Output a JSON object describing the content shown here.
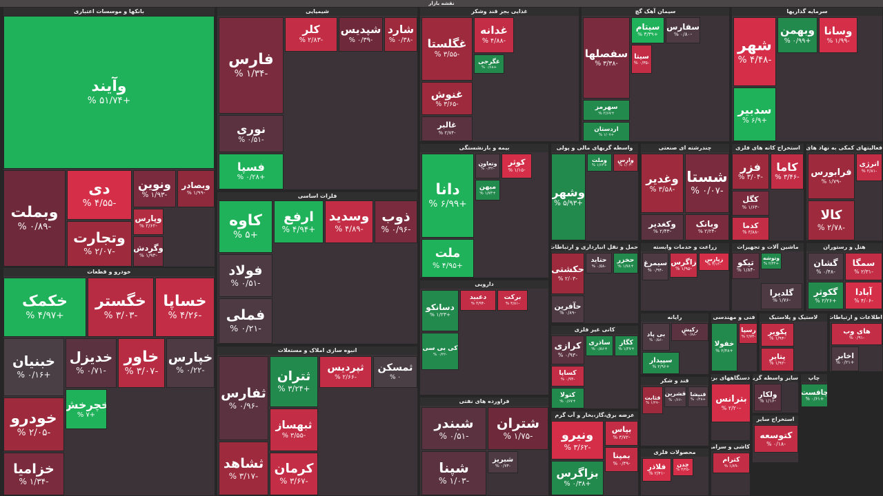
{
  "title": "نقشه بازار",
  "sectors": [
    {
      "name": "بانکها و موسسات اعتباری",
      "tiles": [
        {
          "symbol": "وآیند",
          "change": "+۵۱/۷۴ %",
          "color": "#1fb25a"
        },
        {
          "symbol": "وبملت",
          "change": "-۰/۸۹ %",
          "color": "#6e2a3b"
        },
        {
          "symbol": "دی",
          "change": "-۴/۵۵ %",
          "color": "#d42e48"
        },
        {
          "symbol": "وتجارت",
          "change": "-۲/۰۷ %",
          "color": "#9e2b3d"
        },
        {
          "symbol": "ونوین",
          "change": "-۱/۹۳ %",
          "color": "#7a2c3e"
        },
        {
          "symbol": "وبصادر",
          "change": "-۱/۹۹ %",
          "color": "#8e2a3c"
        },
        {
          "symbol": "وپارس",
          "change": "-۲/۶۲ %",
          "color": "#b22c42"
        },
        {
          "symbol": "وگردش",
          "change": "-۱/۹۳ %",
          "color": "#7a2c3e"
        }
      ]
    },
    {
      "name": "خودرو و قطعات",
      "tiles": [
        {
          "symbol": "خکمک",
          "change": "+۴/۹۷ %",
          "color": "#1fb25a"
        },
        {
          "symbol": "خگستر",
          "change": "-۳/۰۳ %",
          "color": "#b82c43"
        },
        {
          "symbol": "خساپا",
          "change": "-۴/۲۶ %",
          "color": "#c42d46"
        },
        {
          "symbol": "خبنیان",
          "change": "+۰/۱۶ %",
          "color": "#4a3f45"
        },
        {
          "symbol": "خدیزل",
          "change": "-۰/۷۱ %",
          "color": "#5a3240"
        },
        {
          "symbol": "خاور",
          "change": "-۳/۰۷ %",
          "color": "#b82c43"
        },
        {
          "symbol": "خپارس",
          "change": "-۰/۲۲ %",
          "color": "#4e3a43"
        },
        {
          "symbol": "خودرو",
          "change": "-۲/۰۵ %",
          "color": "#9e2b3d"
        },
        {
          "symbol": "خچرخش",
          "change": "+۷ %",
          "color": "#1fb25a"
        },
        {
          "symbol": "خزامیا",
          "change": "-۱/۳۴ %",
          "color": "#7a2c3e"
        }
      ]
    },
    {
      "name": "شیمیایی",
      "tiles": [
        {
          "symbol": "فارس",
          "change": "-۱/۳۴ %",
          "color": "#7a2c3e"
        },
        {
          "symbol": "نوری",
          "change": "-۰/۵۱ %",
          "color": "#5a3240"
        },
        {
          "symbol": "فسپا",
          "change": "+۰/۲۸ %",
          "color": "#1fb25a"
        },
        {
          "symbol": "کلر",
          "change": "-۲/۸۳ %",
          "color": "#c42d46"
        },
        {
          "symbol": "شپدیس",
          "change": "-۰/۳۹ %",
          "color": "#6e2a3b"
        },
        {
          "symbol": "شارد",
          "change": "-۰/۳۸ %",
          "color": "#9e2b3d"
        }
      ]
    },
    {
      "name": "فلزات اساسی",
      "tiles": [
        {
          "symbol": "کاوه",
          "change": "+۵ %",
          "color": "#1fb25a"
        },
        {
          "symbol": "ارفع",
          "change": "+۴/۹۴ %",
          "color": "#1fb25a"
        },
        {
          "symbol": "وسدید",
          "change": "-۴/۸۹ %",
          "color": "#c42d46"
        },
        {
          "symbol": "ذوب",
          "change": "-۰/۹۶ %",
          "color": "#7a2c3e"
        },
        {
          "symbol": "فولاد",
          "change": "-۰/۵۱ %",
          "color": "#4e3a43"
        },
        {
          "symbol": "فملی",
          "change": "-۰/۲۱ %",
          "color": "#4e3a43"
        }
      ]
    },
    {
      "name": "انبوه سازی املاک و مستغلات",
      "tiles": [
        {
          "symbol": "ثفارس",
          "change": "-۰/۹۶ %",
          "color": "#5a3240"
        },
        {
          "symbol": "ثشاهد",
          "change": "-۳/۱۷ %",
          "color": "#9e2b3d"
        },
        {
          "symbol": "ثتران",
          "change": "+۳/۲۴ %",
          "color": "#238a4e"
        },
        {
          "symbol": "ثپردیس",
          "change": "-۲/۶۶ %",
          "color": "#c42d46"
        },
        {
          "symbol": "ثمسکن",
          "change": "۰ %",
          "color": "#4a3f45"
        },
        {
          "symbol": "ثبهساز",
          "change": "-۳/۵۵ %",
          "color": "#c42d46"
        },
        {
          "symbol": "کرمان",
          "change": "-۳/۶۷ %",
          "color": "#c42d46"
        }
      ]
    },
    {
      "name": "غذایی بجز قند وشکر",
      "tiles": [
        {
          "symbol": "غگلستا",
          "change": "-۳/۵۵ %",
          "color": "#9e2b3d"
        },
        {
          "symbol": "غنوش",
          "change": "-۳/۶۵ %",
          "color": "#9e2b3d"
        },
        {
          "symbol": "غالبر",
          "change": "-۲/۷۴ %",
          "color": "#5a3240"
        },
        {
          "symbol": "غدانه",
          "change": "-۴/۸۸ %",
          "color": "#c42d46"
        },
        {
          "symbol": "غگرجی",
          "change": "+۰/۶۸ %",
          "color": "#238a4e"
        }
      ]
    },
    {
      "name": "بیمه و بازنشستگی",
      "tiles": [
        {
          "symbol": "دانا",
          "change": "+۶/۹۹ %",
          "color": "#1fb25a"
        },
        {
          "symbol": "ملت",
          "change": "+۴/۹۵ %",
          "color": "#1fb25a"
        },
        {
          "symbol": "کوثر",
          "change": "-۱/۱۵ %",
          "color": "#d42e48"
        },
        {
          "symbol": "وتعاون",
          "change": "-۰/۳۲ %",
          "color": "#4e3a43"
        },
        {
          "symbol": "میهن",
          "change": "+۱/۷۳ %",
          "color": "#238a4e"
        }
      ]
    },
    {
      "name": "دارویی",
      "tiles": [
        {
          "symbol": "دسانکو",
          "change": "+۱/۲۳ %",
          "color": "#238a4e"
        },
        {
          "symbol": "دعبید",
          "change": "-۳/۹۴ %",
          "color": "#c42d46"
        },
        {
          "symbol": "برکت",
          "change": "-۳/۸۱ %",
          "color": "#c42d46"
        },
        {
          "symbol": "کی بی سی",
          "change": "-۰/۳۲ %",
          "color": "#238a4e"
        }
      ]
    },
    {
      "name": "فراورده های نفتی",
      "tiles": [
        {
          "symbol": "شبندر",
          "change": "-۰/۵۱ %",
          "color": "#5a3240"
        },
        {
          "symbol": "شپنا",
          "change": "-۱/۰۳ %",
          "color": "#5a3240"
        },
        {
          "symbol": "شتران",
          "change": "-۱/۷۵ %",
          "color": "#6e2a3b"
        },
        {
          "symbol": "شبریز",
          "change": "-۰/۷۴ %",
          "color": "#4e3a43"
        }
      ]
    },
    {
      "name": "سیمان آهک گچ",
      "tiles": [
        {
          "symbol": "سفصلها",
          "change": "-۳/۳۸ %",
          "color": "#7a2c3e"
        },
        {
          "symbol": "سهرمز",
          "change": "+۲/۶۷ %",
          "color": "#238a4e"
        },
        {
          "symbol": "اردستان",
          "change": "+۱/۰۷ %",
          "color": "#238a4e"
        },
        {
          "symbol": "سیتام",
          "change": "+۳/۳۹ %",
          "color": "#1fb25a"
        },
        {
          "symbol": "سفارس",
          "change": "-۰/۸۰ %",
          "color": "#4e3a43"
        },
        {
          "symbol": "سیتا",
          "change": "-۰/۳۵ %",
          "color": "#c42d46"
        }
      ]
    },
    {
      "name": "سرمایه گذاریها",
      "tiles": [
        {
          "symbol": "شهر",
          "change": "-۴/۴۸ %",
          "color": "#d42e48"
        },
        {
          "symbol": "سدبیر",
          "change": "+۶/۹ %",
          "color": "#1fb25a"
        },
        {
          "symbol": "وبهمن",
          "change": "+۰/۹۹ %",
          "color": "#238a4e"
        },
        {
          "symbol": "وسانا",
          "change": "-۱/۹۹ %",
          "color": "#d42e48"
        }
      ]
    },
    {
      "name": "واسطه گریهای مالی و پولی",
      "tiles": [
        {
          "symbol": "وشهر",
          "change": "+۵/۹۳ %",
          "color": "#238a4e"
        },
        {
          "symbol": "وملت",
          "change": "+۱/۶۴ %",
          "color": "#238a4e"
        },
        {
          "symbol": "وارس",
          "change": "-۱/۰۳ %",
          "color": "#9e2b3d"
        }
      ]
    },
    {
      "name": "چندرشته ای صنعتی",
      "tiles": [
        {
          "symbol": "وغدیر",
          "change": "-۳/۵۸ %",
          "color": "#9e2b3d"
        },
        {
          "symbol": "شستا",
          "change": "-۰/۰۷ %",
          "color": "#7a2c3e"
        },
        {
          "symbol": "وکغدیر",
          "change": "-۲/۴۳ %",
          "color": "#5a3240"
        },
        {
          "symbol": "وبانک",
          "change": "-۲/۲۴ %",
          "color": "#7a2c3e"
        }
      ]
    },
    {
      "name": "استخراج کانه های فلزی",
      "tiles": [
        {
          "symbol": "فزر",
          "change": "-۳/۰۴ %",
          "color": "#9e2b3d"
        },
        {
          "symbol": "کاما",
          "change": "-۳/۴۶ %",
          "color": "#c42d46"
        },
        {
          "symbol": "کگل",
          "change": "-۱/۶۴ %",
          "color": "#7a2c3e"
        },
        {
          "symbol": "کدما",
          "change": "-۳/۸۸ %",
          "color": "#c42d46"
        }
      ]
    },
    {
      "name": "فعالیتهای کمکی به نهاد های مالی",
      "tiles": [
        {
          "symbol": "فرابورس",
          "change": "-۱/۷۹ %",
          "color": "#9e2b3d"
        },
        {
          "symbol": "انرژی",
          "change": "-۲/۸۱ %",
          "color": "#c42d46"
        },
        {
          "symbol": "کالا",
          "change": "-۲/۷۸ %",
          "color": "#9e2b3d"
        }
      ]
    },
    {
      "name": "حمل و نقل انبارداری و ارتباطات",
      "tiles": [
        {
          "symbol": "حکشتی",
          "change": "-۲/۰۳ %",
          "color": "#9e2b3d"
        },
        {
          "symbol": "حتاید",
          "change": "-۰/۵۸ %",
          "color": "#4e3a43"
        },
        {
          "symbol": "حخزر",
          "change": "+۱/۷۸ %",
          "color": "#238a4e"
        },
        {
          "symbol": "حآفرین",
          "change": "-۰/۸۹ %",
          "color": "#4e3a43"
        }
      ]
    },
    {
      "name": "زراعت و خدمات وابسته",
      "tiles": [
        {
          "symbol": "سیمرغ",
          "change": "-۰/۹۴ %",
          "color": "#4e3a43"
        },
        {
          "symbol": "زاگرس",
          "change": "-۱/۹۵ %",
          "color": "#c42d46"
        },
        {
          "symbol": "زپارس",
          "change": "-۳/۱۴ %",
          "color": "#d42e48"
        }
      ]
    },
    {
      "name": "ماشین آلات و تجهیزات",
      "tiles": [
        {
          "symbol": "تیکو",
          "change": "-۱/۸۴ %",
          "color": "#5a3240"
        },
        {
          "symbol": "وتوشه",
          "change": "+۲/۳۴ %",
          "color": "#238a4e"
        },
        {
          "symbol": "گلدیرا",
          "change": "-۱/۷۶ %",
          "color": "#4e3a43"
        }
      ]
    },
    {
      "name": "هتل و رستوران",
      "tiles": [
        {
          "symbol": "گشان",
          "change": "-۰/۴۸ %",
          "color": "#4e3a43"
        },
        {
          "symbol": "سمگا",
          "change": "-۲/۳۱ %",
          "color": "#c42d46"
        },
        {
          "symbol": "گکوثر",
          "change": "+۲/۲۶ %",
          "color": "#238a4e"
        },
        {
          "symbol": "آبادا",
          "change": "-۴/۰۶ %",
          "color": "#d42e48"
        }
      ]
    },
    {
      "name": "کانی غیر فلزی",
      "tiles": [
        {
          "symbol": "کرازی",
          "change": "-۰/۹۳ %",
          "color": "#5a3240"
        },
        {
          "symbol": "ساذری",
          "change": "+۰/۸۶ %",
          "color": "#238a4e"
        },
        {
          "symbol": "کگاز",
          "change": "+۱/۲۷ %",
          "color": "#238a4e"
        },
        {
          "symbol": "کساپا",
          "change": "-۰/۹۴ %",
          "color": "#c42d46"
        },
        {
          "symbol": "کتولا",
          "change": "+۰/۶۷ %",
          "color": "#238a4e"
        }
      ]
    },
    {
      "name": "عرضه برق،گاز،بخار و آب گرم",
      "tiles": [
        {
          "symbol": "ونیرو",
          "change": "-۳/۶۲ %",
          "color": "#d42e48"
        },
        {
          "symbol": "بپاس",
          "change": "-۳/۷۲ %",
          "color": "#c42d46"
        },
        {
          "symbol": "بزاگرس",
          "change": "+۰/۳۸ %",
          "color": "#238a4e"
        },
        {
          "symbol": "بمپنا",
          "change": "-۰/۴۹ %",
          "color": "#c42d46"
        }
      ]
    },
    {
      "name": "رایانه",
      "tiles": [
        {
          "symbol": "بی پاد",
          "change": "-۰/۵۶ %",
          "color": "#4e3a43"
        },
        {
          "symbol": "رکیش",
          "change": "-۰/۸۸ %",
          "color": "#5a3240"
        },
        {
          "symbol": "سپیدار",
          "change": "+۲/۹۶ %",
          "color": "#238a4e"
        }
      ]
    },
    {
      "name": "فنی و مهندسی",
      "tiles": [
        {
          "symbol": "خفولا",
          "change": "+۲/۴۸ %",
          "color": "#238a4e"
        },
        {
          "symbol": "رسپا",
          "change": "-۲/۷۳ %",
          "color": "#c42d46"
        }
      ]
    },
    {
      "name": "لاستیک و پلاستیک",
      "tiles": [
        {
          "symbol": "پکویر",
          "change": "-۱/۹۴ %",
          "color": "#c42d46"
        },
        {
          "symbol": "پتایر",
          "change": "-۱/۹۲ %",
          "color": "#c42d46"
        }
      ]
    },
    {
      "name": "اطلاعات و ارتباطات",
      "tiles": [
        {
          "symbol": "های وب",
          "change": "-۰/۹۱ %",
          "color": "#c42d46"
        },
        {
          "symbol": "اخابر",
          "change": "+۰/۲۱ %",
          "color": "#4e3a43"
        }
      ]
    },
    {
      "name": "قند و شکر",
      "tiles": [
        {
          "symbol": "قثابت",
          "change": "-۱/۲۷ %",
          "color": "#9e2b3d"
        },
        {
          "symbol": "قشرین",
          "change": "-۰/۶۶ %",
          "color": "#4e3a43"
        },
        {
          "symbol": "قنیشا",
          "change": "+۰/۲۸ %",
          "color": "#4e3a43"
        }
      ]
    },
    {
      "name": "محصولات فلزی",
      "tiles": [
        {
          "symbol": "چدن",
          "change": "-۳/۴۵ %",
          "color": "#d42e48"
        },
        {
          "symbol": "فلاذر",
          "change": "-۲/۴۱ %",
          "color": "#d42e48"
        }
      ]
    },
    {
      "name": "دستگاههای برقی",
      "tiles": [
        {
          "symbol": "بترانس",
          "change": "-۲/۲۰ %",
          "color": "#d42e48"
        }
      ]
    },
    {
      "name": "سایر واسطه گریهای مالی",
      "tiles": [
        {
          "symbol": "ولکار",
          "change": "-۱/۱۶ %",
          "color": "#5a3240"
        }
      ]
    },
    {
      "name": "چاپ",
      "tiles": [
        {
          "symbol": "چافست",
          "change": "+۰/۶۱ %",
          "color": "#238a4e"
        }
      ]
    },
    {
      "name": "استخراج سایر",
      "tiles": [
        {
          "symbol": "کتوسعه",
          "change": "-۰/۱۸ %",
          "color": "#c42d46"
        }
      ]
    },
    {
      "name": "کاشی و سرامیک",
      "tiles": [
        {
          "symbol": "کترام",
          "change": "-۱/۸۹ %",
          "color": "#c42d46"
        }
      ]
    }
  ]
}
